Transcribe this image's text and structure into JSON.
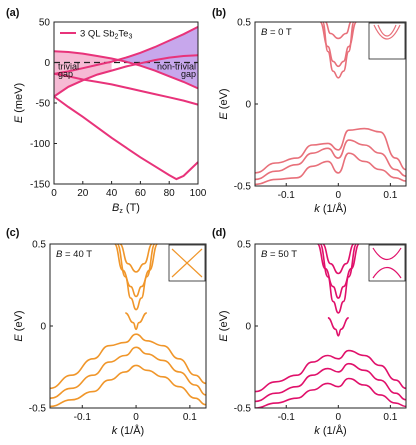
{
  "figure": {
    "label": "Band structure panels for 3 QL Sb2Te3 under magnetic field"
  },
  "chart_data": [
    {
      "panel": "(a)",
      "type": "line",
      "legend": "3 QL Sb2Te3",
      "xlabel": "B_z (T)",
      "ylabel": "E (meV)",
      "xlim": [
        0,
        100
      ],
      "ylim": [
        -150,
        50
      ],
      "xticks": [
        "0",
        "20",
        "40",
        "60",
        "80",
        "100"
      ],
      "yticks": [
        "50",
        "0",
        "-50",
        "-100",
        "-150"
      ],
      "region_labels": {
        "trivial": [
          "trivial",
          "gap"
        ],
        "nontrivial": [
          "non-trivial",
          "gap"
        ]
      },
      "color": "#e8337a",
      "series": [
        {
          "x": [
            0,
            10,
            20,
            30,
            40,
            50,
            60,
            70,
            80,
            90,
            100
          ],
          "values": [
            14,
            13,
            11,
            8,
            5,
            1,
            -4,
            -10,
            -17,
            -24,
            -32
          ]
        },
        {
          "x": [
            0,
            10,
            20,
            30,
            40,
            50,
            60,
            70,
            80,
            90,
            100
          ],
          "values": [
            -14,
            -11,
            -7,
            -3,
            1,
            6,
            12,
            19,
            27,
            35,
            44
          ]
        },
        {
          "x": [
            0,
            10,
            20,
            30,
            40,
            50,
            60,
            70,
            80,
            90,
            100
          ],
          "values": [
            -14,
            -17,
            -21,
            -24,
            -27,
            -31,
            -35,
            -39,
            -43,
            -47,
            -52
          ]
        },
        {
          "x": [
            0,
            10,
            20,
            30,
            40,
            50,
            60,
            70,
            80,
            90,
            100
          ],
          "values": [
            -42,
            -30,
            -22,
            -15,
            -10,
            -5,
            -1,
            3,
            6,
            8,
            9
          ]
        },
        {
          "x": [
            0,
            10,
            20,
            30,
            40,
            50,
            60,
            70,
            80,
            85,
            90,
            100
          ],
          "values": [
            -42,
            -55,
            -67,
            -80,
            -93,
            -105,
            -117,
            -128,
            -139,
            -144,
            -140,
            -123
          ]
        }
      ]
    },
    {
      "panel": "(b)",
      "type": "line",
      "annotation": "B = 0 T",
      "color": "#e8707a",
      "xlabel": "k (1/Å)",
      "ylabel": "E (eV)",
      "xlim": [
        -0.16,
        0.13
      ],
      "ylim": [
        -0.5,
        0.5
      ],
      "xticks": [
        "-0.1",
        "0",
        "0.1"
      ],
      "yticks": [
        "0.5",
        "0",
        "-0.5"
      ],
      "series": [
        {
          "x": [
            -0.03,
            -0.02,
            -0.01,
            0,
            0.01,
            0.02,
            0.03
          ],
          "values": [
            0.5,
            0.32,
            0.2,
            0.16,
            0.2,
            0.32,
            0.5
          ]
        },
        {
          "x": [
            -0.035,
            -0.02,
            -0.01,
            0,
            0.01,
            0.02,
            0.035
          ],
          "values": [
            0.5,
            0.35,
            0.26,
            0.23,
            0.26,
            0.35,
            0.5
          ]
        },
        {
          "x": [
            -0.025,
            -0.015,
            0,
            0.015,
            0.025
          ],
          "values": [
            0.5,
            0.43,
            0.4,
            0.43,
            0.5
          ]
        },
        {
          "x": [
            -0.16,
            -0.12,
            -0.08,
            -0.05,
            -0.02,
            0,
            0.02,
            0.05,
            0.08,
            0.11,
            0.13
          ],
          "values": [
            -0.42,
            -0.36,
            -0.33,
            -0.25,
            -0.24,
            -0.28,
            -0.16,
            -0.15,
            -0.17,
            -0.33,
            -0.4
          ]
        },
        {
          "x": [
            -0.16,
            -0.12,
            -0.08,
            -0.05,
            -0.02,
            0,
            0.02,
            0.05,
            0.08,
            0.11,
            0.13
          ],
          "values": [
            -0.46,
            -0.41,
            -0.37,
            -0.3,
            -0.27,
            -0.33,
            -0.22,
            -0.25,
            -0.3,
            -0.4,
            -0.44
          ]
        },
        {
          "x": [
            -0.16,
            -0.12,
            -0.08,
            -0.05,
            -0.02,
            0,
            0.02,
            0.05,
            0.08,
            0.11,
            0.13
          ],
          "values": [
            -0.49,
            -0.46,
            -0.45,
            -0.38,
            -0.35,
            -0.42,
            -0.3,
            -0.35,
            -0.4,
            -0.45,
            -0.47
          ]
        }
      ]
    },
    {
      "panel": "(c)",
      "type": "line",
      "annotation": "B = 40 T",
      "color": "#f0962a",
      "xlabel": "k (1/Å)",
      "ylabel": "E (eV)",
      "xlim": [
        -0.16,
        0.13
      ],
      "ylim": [
        -0.5,
        0.5
      ],
      "xticks": [
        "-0.1",
        "0",
        "0.1"
      ],
      "yticks": [
        "0.5",
        "0",
        "-0.5"
      ],
      "series": [
        {
          "x": [
            -0.035,
            -0.02,
            -0.01,
            0,
            0.01,
            0.02,
            0.035
          ],
          "values": [
            0.5,
            0.3,
            0.17,
            0.1,
            0.17,
            0.3,
            0.5
          ]
        },
        {
          "x": [
            -0.04,
            -0.025,
            -0.01,
            0,
            0.01,
            0.025,
            0.04
          ],
          "values": [
            0.5,
            0.34,
            0.24,
            0.18,
            0.24,
            0.34,
            0.5
          ]
        },
        {
          "x": [
            -0.03,
            -0.015,
            0,
            0.015,
            0.03
          ],
          "values": [
            0.5,
            0.38,
            0.33,
            0.38,
            0.5
          ]
        },
        {
          "x": [
            -0.02,
            -0.005,
            0,
            0.005,
            0.02
          ],
          "values": [
            0.08,
            0.02,
            -0.02,
            0.02,
            0.08
          ]
        },
        {
          "x": [
            -0.16,
            -0.12,
            -0.08,
            -0.05,
            -0.02,
            0,
            0.02,
            0.05,
            0.08,
            0.11,
            0.13
          ],
          "values": [
            -0.38,
            -0.3,
            -0.2,
            -0.12,
            -0.1,
            -0.05,
            -0.09,
            -0.12,
            -0.2,
            -0.3,
            -0.35
          ]
        },
        {
          "x": [
            -0.16,
            -0.12,
            -0.08,
            -0.05,
            -0.02,
            0,
            0.02,
            0.05,
            0.08,
            0.11,
            0.13
          ],
          "values": [
            -0.44,
            -0.38,
            -0.3,
            -0.22,
            -0.18,
            -0.13,
            -0.17,
            -0.21,
            -0.28,
            -0.36,
            -0.42
          ]
        },
        {
          "x": [
            -0.16,
            -0.12,
            -0.08,
            -0.05,
            -0.02,
            0,
            0.02,
            0.05,
            0.08,
            0.11,
            0.13
          ],
          "values": [
            -0.49,
            -0.45,
            -0.4,
            -0.33,
            -0.28,
            -0.24,
            -0.27,
            -0.31,
            -0.37,
            -0.44,
            -0.48
          ]
        }
      ]
    },
    {
      "panel": "(d)",
      "type": "line",
      "annotation": "B = 50 T",
      "color": "#e0106a",
      "xlabel": "k (1/Å)",
      "ylabel": "E (eV)",
      "xlim": [
        -0.16,
        0.13
      ],
      "ylim": [
        -0.5,
        0.5
      ],
      "xticks": [
        "-0.1",
        "0",
        "0.1"
      ],
      "yticks": [
        "0.5",
        "0",
        "-0.5"
      ],
      "series": [
        {
          "x": [
            -0.035,
            -0.02,
            -0.01,
            0,
            0.01,
            0.02,
            0.035
          ],
          "values": [
            0.5,
            0.3,
            0.15,
            0.08,
            0.15,
            0.3,
            0.5
          ]
        },
        {
          "x": [
            -0.04,
            -0.025,
            -0.01,
            0,
            0.01,
            0.025,
            0.04
          ],
          "values": [
            0.5,
            0.35,
            0.24,
            0.17,
            0.24,
            0.35,
            0.5
          ]
        },
        {
          "x": [
            -0.03,
            -0.015,
            0,
            0.015,
            0.03
          ],
          "values": [
            0.5,
            0.38,
            0.32,
            0.38,
            0.5
          ]
        },
        {
          "x": [
            -0.02,
            -0.005,
            0,
            0.005,
            0.02
          ],
          "values": [
            0.05,
            -0.02,
            -0.06,
            -0.02,
            0.05
          ]
        },
        {
          "x": [
            -0.16,
            -0.12,
            -0.08,
            -0.05,
            -0.02,
            0,
            0.02,
            0.05,
            0.08,
            0.11,
            0.13
          ],
          "values": [
            -0.4,
            -0.34,
            -0.3,
            -0.22,
            -0.18,
            -0.2,
            -0.15,
            -0.18,
            -0.24,
            -0.33,
            -0.38
          ]
        },
        {
          "x": [
            -0.16,
            -0.12,
            -0.08,
            -0.05,
            -0.02,
            0,
            0.02,
            0.05,
            0.08,
            0.11,
            0.13
          ],
          "values": [
            -0.46,
            -0.41,
            -0.37,
            -0.3,
            -0.26,
            -0.28,
            -0.23,
            -0.27,
            -0.33,
            -0.41,
            -0.45
          ]
        },
        {
          "x": [
            -0.16,
            -0.12,
            -0.08,
            -0.05,
            -0.02,
            0,
            0.02,
            0.05,
            0.08,
            0.11,
            0.13
          ],
          "values": [
            -0.5,
            -0.47,
            -0.44,
            -0.39,
            -0.35,
            -0.37,
            -0.32,
            -0.36,
            -0.42,
            -0.47,
            -0.49
          ]
        }
      ]
    }
  ]
}
